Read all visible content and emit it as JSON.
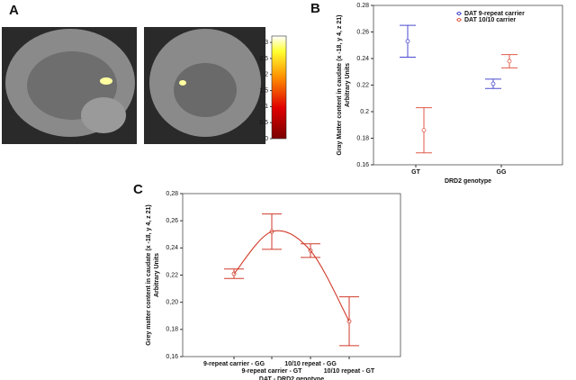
{
  "chart_data": [
    {
      "type": "colorbar",
      "panel_label": "A",
      "ylim": [
        0,
        3.2
      ],
      "yticks": [
        0,
        0.5,
        1,
        1.5,
        2,
        2.5,
        3
      ]
    },
    {
      "type": "errorbar",
      "panel_label": "B",
      "ylabel": "Gray Matter content in caudate (x -18, y 4, z 21)",
      "ylabel_units": "Arbitrary Units",
      "xlabel": "DRD2 genotype",
      "categories": [
        "GT",
        "GG"
      ],
      "series": [
        {
          "name": "DAT 9-repeat carrier",
          "color": "#4a4ad0",
          "values": [
            0.253,
            0.221
          ],
          "errors": [
            0.012,
            0.0035
          ]
        },
        {
          "name": "DAT 10/10 carrier",
          "color": "#e05a4a",
          "values": [
            0.186,
            0.238
          ],
          "errors": [
            0.017,
            0.005
          ]
        }
      ],
      "ylim": [
        0.16,
        0.28
      ],
      "yticks": [
        0.16,
        0.18,
        0.2,
        0.22,
        0.24,
        0.26,
        0.28
      ],
      "legend": "top-right"
    },
    {
      "type": "errorbar",
      "panel_label": "C",
      "ylabel": "Grey matter content in caudate (x -18, y 4, z 21)",
      "ylabel_units": "Arbitrary Units",
      "xlabel": "DAT - DRD2 genotype",
      "categories": [
        "9-repeat carrier - GG",
        "9-repeat carrier - GT",
        "10/10 repeat - GG",
        "10/10 repeat - GT"
      ],
      "series": [
        {
          "color": "#d03a2a",
          "values": [
            0.221,
            0.252,
            0.238,
            0.186
          ],
          "errors": [
            0.0035,
            0.013,
            0.005,
            0.018
          ]
        }
      ],
      "ylim": [
        0.16,
        0.28
      ],
      "yticks": [
        {
          "value": 0.16,
          "label": "0,16"
        },
        {
          "value": 0.18,
          "label": "0,18"
        },
        {
          "value": 0.2,
          "label": "0,20"
        },
        {
          "value": 0.22,
          "label": "0,22"
        },
        {
          "value": 0.24,
          "label": "0,24"
        },
        {
          "value": 0.26,
          "label": "0,26"
        },
        {
          "value": 0.28,
          "label": "0,28"
        }
      ],
      "fit_curve": true
    }
  ]
}
